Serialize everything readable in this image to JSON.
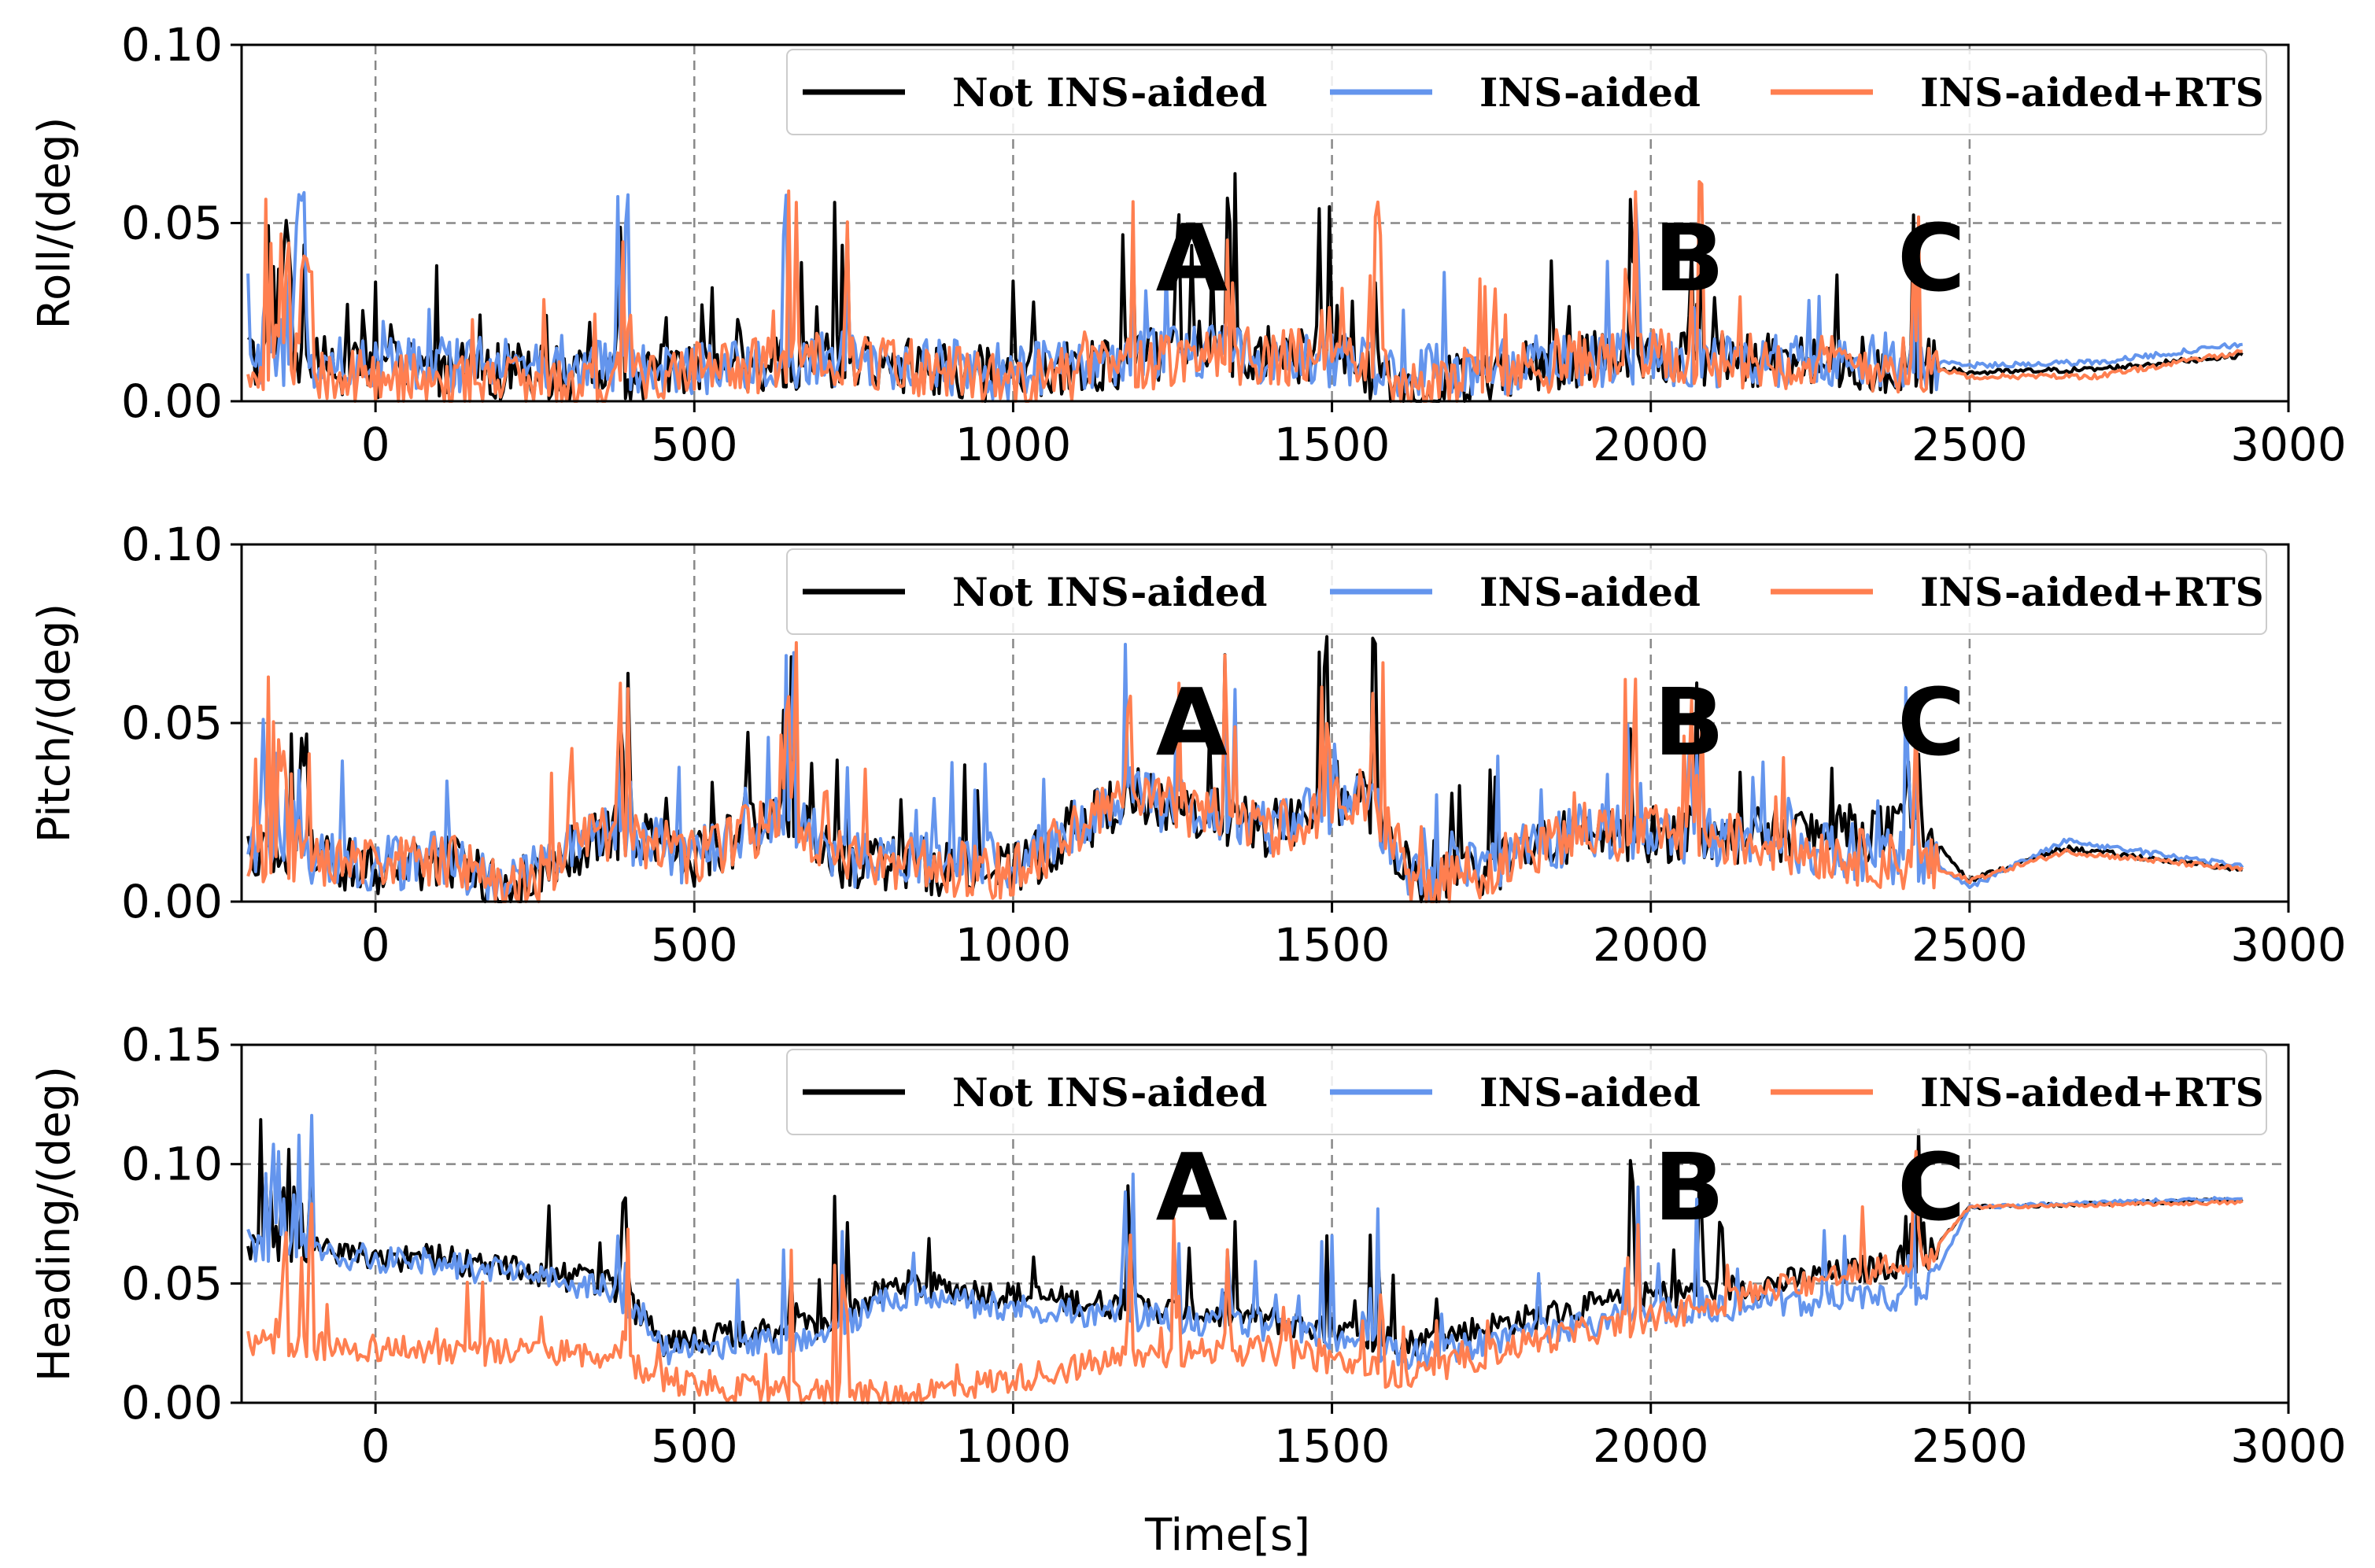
{
  "colors": {
    "not_ins_aided": "#000000",
    "ins_aided": "#6495ED",
    "ins_aided_rts": "#FF7F50",
    "grid": "#888888"
  },
  "chart_data": [
    {
      "type": "line",
      "ylabel": "Roll/(deg)",
      "xlabel": "",
      "xlim": [
        -210,
        3000
      ],
      "ylim": [
        0.0,
        0.1
      ],
      "xticks": [
        "0",
        "500",
        "1000",
        "1500",
        "2000",
        "2500",
        "3000"
      ],
      "yticks": [
        "0.00",
        "0.05",
        "0.10"
      ],
      "grid": "dashed",
      "legend_position": "top-right",
      "legend": [
        "Not INS-aided",
        "INS-aided",
        "INS-aided+RTS"
      ],
      "annotations": [
        {
          "text": "A",
          "x": 1280,
          "y": 0.04
        },
        {
          "text": "B",
          "x": 2060,
          "y": 0.04
        },
        {
          "text": "C",
          "x": 2440,
          "y": 0.04
        }
      ],
      "series": [
        {
          "name": "Not INS-aided",
          "x": [
            -200,
            0,
            300,
            500,
            720,
            1000,
            1300,
            1500,
            1640,
            1900,
            2100,
            2430,
            2500,
            2700,
            2930
          ],
          "values": [
            0.012,
            0.009,
            0.008,
            0.009,
            0.012,
            0.007,
            0.015,
            0.012,
            0.004,
            0.012,
            0.012,
            0.01,
            0.008,
            0.009,
            0.013
          ]
        },
        {
          "name": "INS-aided",
          "x": [
            -200,
            0,
            300,
            500,
            720,
            1000,
            1300,
            1500,
            1640,
            1900,
            2100,
            2430,
            2500,
            2700,
            2930
          ],
          "values": [
            0.013,
            0.01,
            0.011,
            0.009,
            0.012,
            0.008,
            0.014,
            0.012,
            0.008,
            0.012,
            0.012,
            0.011,
            0.01,
            0.011,
            0.016
          ]
        },
        {
          "name": "INS-aided+RTS",
          "x": [
            -200,
            0,
            300,
            500,
            720,
            1000,
            1300,
            1500,
            1640,
            1900,
            2100,
            2430,
            2500,
            2700,
            2930
          ],
          "values": [
            0.012,
            0.006,
            0.004,
            0.009,
            0.012,
            0.006,
            0.013,
            0.012,
            0.004,
            0.012,
            0.012,
            0.01,
            0.007,
            0.007,
            0.014
          ]
        }
      ]
    },
    {
      "type": "line",
      "ylabel": "Pitch/(deg)",
      "xlabel": "",
      "xlim": [
        -210,
        3000
      ],
      "ylim": [
        0.0,
        0.1
      ],
      "xticks": [
        "0",
        "500",
        "1000",
        "1500",
        "2000",
        "2500",
        "3000"
      ],
      "yticks": [
        "0.00",
        "0.05",
        "0.10"
      ],
      "grid": "dashed",
      "legend_position": "top-right",
      "legend": [
        "Not INS-aided",
        "INS-aided",
        "INS-aided+RTS"
      ],
      "annotations": [
        {
          "text": "A",
          "x": 1280,
          "y": 0.05
        },
        {
          "text": "B",
          "x": 2060,
          "y": 0.05
        },
        {
          "text": "C",
          "x": 2440,
          "y": 0.05
        }
      ],
      "series": [
        {
          "name": "Not INS-aided",
          "x": [
            -200,
            0,
            110,
            200,
            370,
            500,
            650,
            720,
            1000,
            1180,
            1400,
            1550,
            1640,
            1900,
            2100,
            2430,
            2500,
            2650,
            2930
          ],
          "values": [
            0.015,
            0.01,
            0.012,
            0.002,
            0.02,
            0.012,
            0.025,
            0.012,
            0.008,
            0.03,
            0.02,
            0.03,
            0.003,
            0.02,
            0.018,
            0.02,
            0.006,
            0.015,
            0.009
          ]
        },
        {
          "name": "INS-aided",
          "x": [
            -200,
            0,
            110,
            200,
            370,
            500,
            650,
            720,
            1000,
            1180,
            1400,
            1550,
            1640,
            1900,
            2100,
            2430,
            2500,
            2650,
            2930
          ],
          "values": [
            0.015,
            0.01,
            0.012,
            0.003,
            0.02,
            0.012,
            0.025,
            0.012,
            0.012,
            0.03,
            0.02,
            0.03,
            0.004,
            0.02,
            0.018,
            0.012,
            0.004,
            0.017,
            0.01
          ]
        },
        {
          "name": "INS-aided+RTS",
          "x": [
            -200,
            0,
            110,
            200,
            370,
            500,
            650,
            720,
            1000,
            1180,
            1400,
            1550,
            1640,
            1900,
            2100,
            2430,
            2500,
            2650,
            2930
          ],
          "values": [
            0.014,
            0.01,
            0.012,
            0.002,
            0.02,
            0.012,
            0.025,
            0.012,
            0.008,
            0.03,
            0.02,
            0.03,
            0.003,
            0.02,
            0.018,
            0.01,
            0.006,
            0.014,
            0.009
          ]
        }
      ]
    },
    {
      "type": "line",
      "ylabel": "Heading/(deg)",
      "xlabel": "Time[s]",
      "xlim": [
        -210,
        3000
      ],
      "ylim": [
        0.0,
        0.15
      ],
      "xticks": [
        "0",
        "500",
        "1000",
        "1500",
        "2000",
        "2500",
        "3000"
      ],
      "yticks": [
        "0.00",
        "0.05",
        "0.10",
        "0.15"
      ],
      "grid": "dashed",
      "legend_position": "top-right",
      "legend": [
        "Not INS-aided",
        "INS-aided",
        "INS-aided+RTS"
      ],
      "annotations": [
        {
          "text": "A",
          "x": 1280,
          "y": 0.09
        },
        {
          "text": "B",
          "x": 2060,
          "y": 0.09
        },
        {
          "text": "C",
          "x": 2440,
          "y": 0.09
        }
      ],
      "series": [
        {
          "name": "Not INS-aided",
          "x": [
            -200,
            110,
            370,
            450,
            600,
            700,
            820,
            1000,
            1200,
            1400,
            1500,
            1620,
            1800,
            2000,
            2200,
            2430,
            2500,
            2930
          ],
          "values": [
            0.065,
            0.06,
            0.05,
            0.025,
            0.03,
            0.032,
            0.05,
            0.045,
            0.04,
            0.035,
            0.03,
            0.025,
            0.035,
            0.045,
            0.05,
            0.06,
            0.082,
            0.085
          ]
        },
        {
          "name": "INS-aided",
          "x": [
            -200,
            110,
            370,
            450,
            600,
            700,
            820,
            1000,
            1200,
            1400,
            1500,
            1620,
            1800,
            2000,
            2200,
            2430,
            2500,
            2930
          ],
          "values": [
            0.065,
            0.058,
            0.048,
            0.022,
            0.025,
            0.028,
            0.045,
            0.04,
            0.036,
            0.032,
            0.028,
            0.02,
            0.028,
            0.038,
            0.042,
            0.045,
            0.082,
            0.086
          ]
        },
        {
          "name": "INS-aided+RTS",
          "x": [
            -200,
            110,
            370,
            450,
            600,
            700,
            820,
            1000,
            1200,
            1400,
            1500,
            1620,
            1800,
            2000,
            2200,
            2430,
            2500,
            2930
          ],
          "values": [
            0.025,
            0.022,
            0.02,
            0.01,
            0.005,
            0.004,
            0.003,
            0.01,
            0.02,
            0.022,
            0.018,
            0.01,
            0.025,
            0.035,
            0.048,
            0.06,
            0.082,
            0.084
          ]
        }
      ]
    }
  ]
}
